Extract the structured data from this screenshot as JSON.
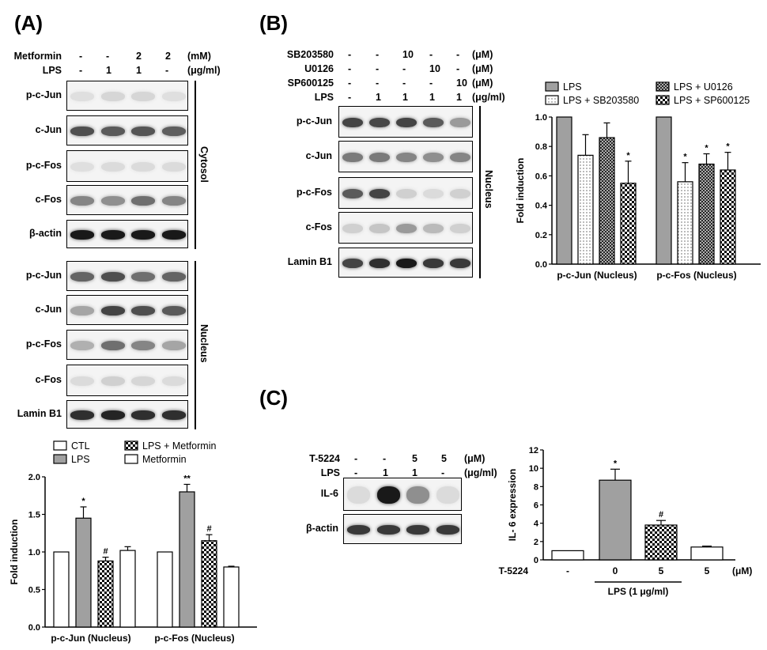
{
  "panels": {
    "A": "(A)",
    "B": "(B)",
    "C": "(C)"
  },
  "panelA": {
    "treatments": [
      {
        "label": "Metformin",
        "values": [
          "-",
          "-",
          "2",
          "2"
        ],
        "unit": "(mM)"
      },
      {
        "label": "LPS",
        "values": [
          "-",
          "1",
          "1",
          "-"
        ],
        "unit": "(μg/ml)"
      }
    ],
    "cytosol_rows": [
      "p-c-Jun",
      "c-Jun",
      "p-c-Fos",
      "c-Fos",
      "β-actin"
    ],
    "nucleus_rows": [
      "p-c-Jun",
      "c-Jun",
      "p-c-Fos",
      "c-Fos",
      "Lamin B1"
    ],
    "cytosol_label": "Cytosol",
    "nucleus_label": "Nucleus"
  },
  "panelB": {
    "treatments": [
      {
        "label": "SB203580",
        "values": [
          "-",
          "-",
          "10",
          "-",
          "-"
        ],
        "unit": "(μM)"
      },
      {
        "label": "U0126",
        "values": [
          "-",
          "-",
          "-",
          "10",
          "-"
        ],
        "unit": "(μM)"
      },
      {
        "label": "SP600125",
        "values": [
          "-",
          "-",
          "-",
          "-",
          "10"
        ],
        "unit": "(μM)"
      },
      {
        "label": "LPS",
        "values": [
          "-",
          "1",
          "1",
          "1",
          "1"
        ],
        "unit": "(μg/ml)"
      }
    ],
    "rows": [
      "p-c-Jun",
      "c-Jun",
      "p-c-Fos",
      "c-Fos",
      "Lamin B1"
    ],
    "nucleus_label": "Nucleus"
  },
  "panelC": {
    "treatments": [
      {
        "label": "T-5224",
        "values": [
          "-",
          "-",
          "5",
          "5"
        ],
        "unit": "(μM)"
      },
      {
        "label": "LPS",
        "values": [
          "-",
          "1",
          "1",
          "-"
        ],
        "unit": "(μg/ml)"
      }
    ],
    "rows": [
      "IL-6",
      "β-actin"
    ]
  },
  "chart_data": [
    {
      "type": "bar",
      "panel": "A",
      "categories": [
        "p-c-Jun (Nucleus)",
        "p-c-Fos (Nucleus)"
      ],
      "series": [
        {
          "name": "CTL",
          "values": [
            1.0,
            1.0
          ],
          "errors": [
            0,
            0
          ],
          "color": "#ffffff",
          "pattern": "solid"
        },
        {
          "name": "LPS",
          "values": [
            1.45,
            1.8
          ],
          "errors": [
            0.15,
            0.1
          ],
          "color": "#a0a0a0",
          "pattern": "solid",
          "sig": [
            "*",
            "**"
          ]
        },
        {
          "name": "LPS + Metformin",
          "values": [
            0.88,
            1.15
          ],
          "errors": [
            0.05,
            0.08
          ],
          "color": "#000000",
          "pattern": "checker",
          "sig": [
            "#",
            "#"
          ]
        },
        {
          "name": "Metformin",
          "values": [
            1.02,
            0.8
          ],
          "errors": [
            0.05,
            0.01
          ],
          "color": "#ffffff",
          "pattern": "solid"
        }
      ],
      "ylabel": "Fold induction",
      "ylim": [
        0,
        2.0
      ],
      "yticks": [
        "0.0",
        "0.5",
        "1.0",
        "1.5",
        "2.0"
      ],
      "legend_order": [
        "CTL",
        "LPS + Metformin",
        "LPS",
        "Metformin"
      ]
    },
    {
      "type": "bar",
      "panel": "B",
      "categories": [
        "p-c-Jun (Nucleus)",
        "p-c-Fos (Nucleus)"
      ],
      "series": [
        {
          "name": "LPS",
          "values": [
            1.0,
            1.0
          ],
          "errors": [
            0,
            0
          ],
          "color": "#a0a0a0",
          "pattern": "solid"
        },
        {
          "name": "LPS + SB203580",
          "values": [
            0.74,
            0.56
          ],
          "errors": [
            0.14,
            0.13
          ],
          "color": "#ffffff",
          "pattern": "dots",
          "sig": [
            "",
            "*"
          ]
        },
        {
          "name": "LPS + U0126",
          "values": [
            0.86,
            0.68
          ],
          "errors": [
            0.1,
            0.07
          ],
          "color": "#808080",
          "pattern": "crosshatch",
          "sig": [
            "",
            "*"
          ]
        },
        {
          "name": "LPS + SP600125",
          "values": [
            0.55,
            0.64
          ],
          "errors": [
            0.15,
            0.12
          ],
          "color": "#000000",
          "pattern": "checker",
          "sig": [
            "*",
            "*"
          ]
        }
      ],
      "ylabel": "Fold induction",
      "ylim": [
        0,
        1.0
      ],
      "yticks": [
        "0.0",
        "0.2",
        "0.4",
        "0.6",
        "0.8",
        "1.0"
      ],
      "legend_order": [
        "LPS",
        "LPS + U0126",
        "LPS + SB203580",
        "LPS + SP600125"
      ]
    },
    {
      "type": "bar",
      "panel": "C",
      "categories": [
        "-",
        "0",
        "5",
        "5"
      ],
      "values": [
        1.0,
        8.7,
        3.8,
        1.4
      ],
      "errors": [
        0,
        1.2,
        0.5,
        0.1
      ],
      "colors": [
        "#ffffff",
        "#a0a0a0",
        "#000000",
        "#ffffff"
      ],
      "patterns": [
        "solid",
        "solid",
        "checker",
        "solid"
      ],
      "sig": [
        "",
        "*",
        "#",
        ""
      ],
      "ylabel": "IL- 6 expression",
      "ylim": [
        0,
        12
      ],
      "yticks": [
        "0",
        "2",
        "4",
        "6",
        "8",
        "10",
        "12"
      ],
      "xrow_label": "T-5224",
      "xrow_unit": "(μM)",
      "group_label": "LPS (1 μg/ml)"
    }
  ]
}
